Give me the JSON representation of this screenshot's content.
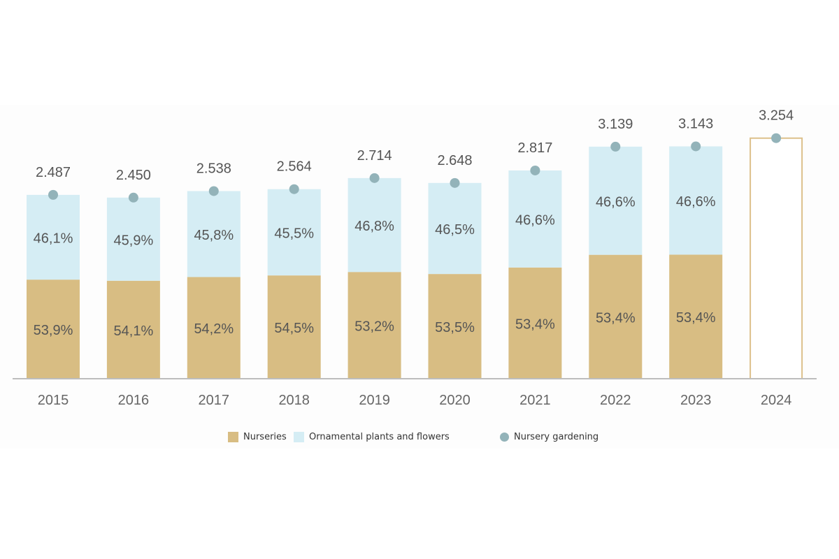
{
  "chart_data": {
    "type": "bar",
    "stacked": true,
    "categories": [
      "2015",
      "2016",
      "2017",
      "2018",
      "2019",
      "2020",
      "2021",
      "2022",
      "2023",
      "2024"
    ],
    "totals": [
      2487,
      2450,
      2538,
      2564,
      2714,
      2648,
      2817,
      3139,
      3143,
      3254
    ],
    "total_labels": [
      "2.487",
      "2.450",
      "2.538",
      "2.564",
      "2.714",
      "2.648",
      "2.817",
      "3.139",
      "3.143",
      "3.254"
    ],
    "series": [
      {
        "name": "Nurseries",
        "color": "#d8bd83",
        "shares": [
          53.9,
          54.1,
          54.2,
          54.5,
          53.2,
          53.5,
          53.4,
          53.4,
          53.4,
          null
        ],
        "labels": [
          "53,9%",
          "54,1%",
          "54,2%",
          "54,5%",
          "53,2%",
          "53,5%",
          "53,4%",
          "53,4%",
          "53,4%",
          ""
        ]
      },
      {
        "name": "Ornamental plants and flowers",
        "color": "#d5edf4",
        "shares": [
          46.1,
          45.9,
          45.8,
          45.5,
          46.8,
          46.5,
          46.6,
          46.6,
          46.6,
          null
        ],
        "labels": [
          "46,1%",
          "45,9%",
          "45,8%",
          "45,5%",
          "46,8%",
          "46,5%",
          "46,6%",
          "46,6%",
          "46,6%",
          ""
        ]
      },
      {
        "name": "Nursery gardening",
        "color": "#93b3b9",
        "marker": "dot",
        "values": [
          2487,
          2450,
          2538,
          2564,
          2714,
          2648,
          2817,
          3139,
          3143,
          3254
        ]
      }
    ],
    "unsplit_bar": {
      "category": "2024",
      "outline_color": "#dcc08a"
    },
    "grid": false,
    "legend_position": "bottom",
    "axis_color": "#bdbdbd",
    "label_color": "#555555"
  }
}
